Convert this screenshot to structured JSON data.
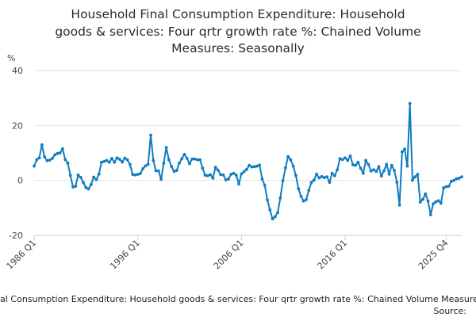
{
  "chart_data": {
    "type": "line",
    "title_lines": [
      "Household Final Consumption Expenditure: Household",
      "goods & services: Four qrtr growth rate %: Chained Volume",
      "Measures: Seasonally"
    ],
    "unit_label": "%",
    "ylim": [
      -20,
      40
    ],
    "y_ticks": [
      -20,
      0,
      20,
      40
    ],
    "y_tick_labels": [
      "-20",
      "0",
      "20",
      "40"
    ],
    "x_range": [
      "1986 Q1",
      "2025 Q4"
    ],
    "x_ticks": [
      {
        "label": "1986 Q1",
        "index": 0
      },
      {
        "label": "1996 Q1",
        "index": 40
      },
      {
        "label": "2006 Q1",
        "index": 80
      },
      {
        "label": "2016 Q1",
        "index": 120
      },
      {
        "label": "2025 Q4",
        "index": 159
      }
    ],
    "grid": true,
    "series": [
      {
        "name": "Household Final Consumption Expenditure: Household goods & services: Four qrtr growth rate %: Chained Volume Measures: Seasonally",
        "color": "#0f7cbf",
        "start": "1986 Q1",
        "values": [
          5.2,
          7.5,
          8.2,
          13.0,
          8.6,
          7.2,
          7.4,
          8.0,
          9.3,
          9.8,
          10.0,
          11.5,
          7.6,
          6.3,
          1.8,
          -2.4,
          -2.1,
          2.0,
          1.1,
          -0.8,
          -2.6,
          -3.1,
          -1.5,
          1.2,
          0.3,
          2.3,
          6.6,
          6.9,
          7.3,
          6.6,
          8.0,
          6.6,
          8.2,
          7.7,
          6.7,
          8.1,
          7.5,
          5.8,
          2.2,
          2.0,
          2.2,
          2.5,
          4.3,
          5.3,
          5.9,
          16.5,
          7.3,
          3.5,
          3.5,
          0.4,
          6.2,
          12.0,
          7.5,
          5.1,
          3.3,
          3.6,
          6.3,
          7.9,
          9.5,
          8.0,
          6.1,
          7.8,
          7.8,
          7.5,
          7.5,
          4.5,
          1.9,
          1.7,
          2.1,
          0.8,
          4.8,
          3.7,
          2.1,
          2.0,
          0.2,
          0.5,
          2.2,
          2.6,
          1.9,
          -1.3,
          2.4,
          3.2,
          4.0,
          5.5,
          4.9,
          5.0,
          5.2,
          5.6,
          0.5,
          -1.8,
          -7.1,
          -10.7,
          -14.0,
          -13.2,
          -11.7,
          -6.4,
          -0.1,
          4.6,
          8.7,
          7.5,
          5.2,
          1.8,
          -3.0,
          -5.8,
          -7.5,
          -7.0,
          -3.6,
          -0.7,
          0.1,
          2.3,
          0.9,
          1.4,
          1.0,
          1.3,
          -0.7,
          2.6,
          1.7,
          3.9,
          7.9,
          7.6,
          8.2,
          7.3,
          8.9,
          5.7,
          5.5,
          6.6,
          4.4,
          2.6,
          7.3,
          5.8,
          3.4,
          3.9,
          3.3,
          5.0,
          1.6,
          3.5,
          5.9,
          2.3,
          5.5,
          3.6,
          -0.7,
          -9.0,
          10.4,
          11.4,
          5.2,
          28.0,
          0.1,
          1.3,
          2.2,
          -7.9,
          -6.9,
          -4.9,
          -7.5,
          -12.5,
          -8.5,
          -7.8,
          -7.4,
          -8.3,
          -2.7,
          -2.3,
          -2.1,
          -0.3,
          0.0,
          0.6,
          0.8,
          1.3
        ]
      }
    ],
    "footer_text": "Household Final Consumption Expenditure: Household goods & services: Four qrtr growth rate %: Chained Volume Measures: Seasonally",
    "source_label": "Source:"
  }
}
